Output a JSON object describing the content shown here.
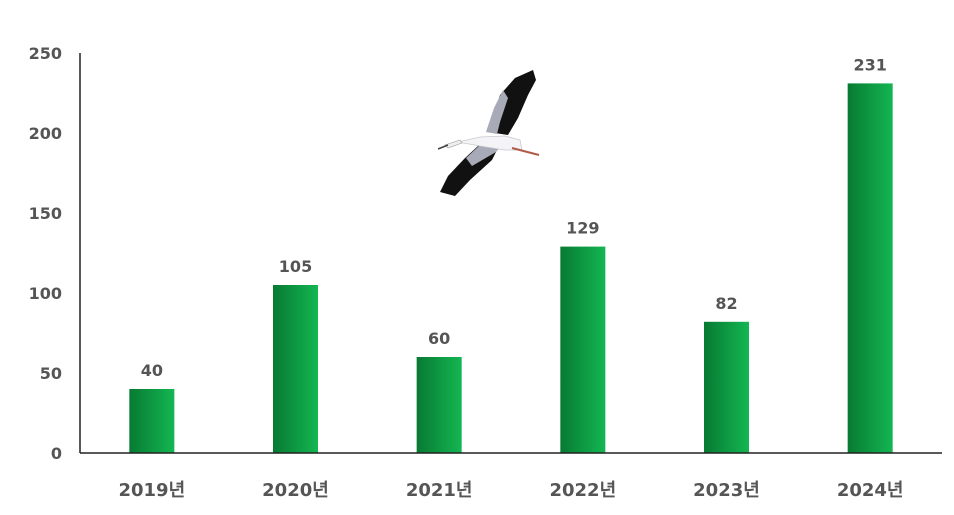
{
  "chart_data": {
    "type": "bar",
    "title": "",
    "xlabel": "",
    "ylabel": "",
    "categories": [
      "2019년",
      "2020년",
      "2021년",
      "2022년",
      "2023년",
      "2024년"
    ],
    "values": [
      40,
      105,
      60,
      129,
      82,
      231
    ],
    "ylim": [
      0,
      250
    ],
    "yticks": [
      0,
      50,
      100,
      150,
      200,
      250
    ],
    "grid": false,
    "legend": "none",
    "colors": {
      "bar_dark": "#077a32",
      "bar_light": "#14b652",
      "text": "#555555",
      "axis": "#222222"
    },
    "decoration": "flying-stork-image"
  }
}
